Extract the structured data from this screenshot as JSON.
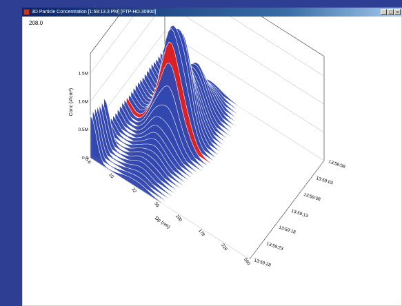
{
  "window": {
    "title": "3D Particle Concentration [1:59:13.3 PM]  [FTP-HD.3090d]",
    "buttons": [
      "_",
      "□",
      "×"
    ]
  },
  "readout": {
    "value": "208.0"
  },
  "chart_data": {
    "type": "area",
    "subtype": "3d-waterfall",
    "title": "",
    "zlabel": "Conc (#/cm³)",
    "xlabel": "Dp (nm)",
    "ylabel": "",
    "z_ticks": [
      "0.0",
      "0.5M",
      "1.0M",
      "1.5M"
    ],
    "z_range": [
      0,
      1800000
    ],
    "x_ticks": [
      "5.6",
      "10",
      "32",
      "56",
      "100",
      "178",
      "316",
      "560"
    ],
    "y_ticks": [
      "13:58:58",
      "13:59:03",
      "13:59:08",
      "13:59:13",
      "13:59:18",
      "13:59:23",
      "13:59:28"
    ],
    "series_color": "#3347b0",
    "highlight_color": "#e02020",
    "highlight_time": "13:59:13",
    "grid": true
  }
}
